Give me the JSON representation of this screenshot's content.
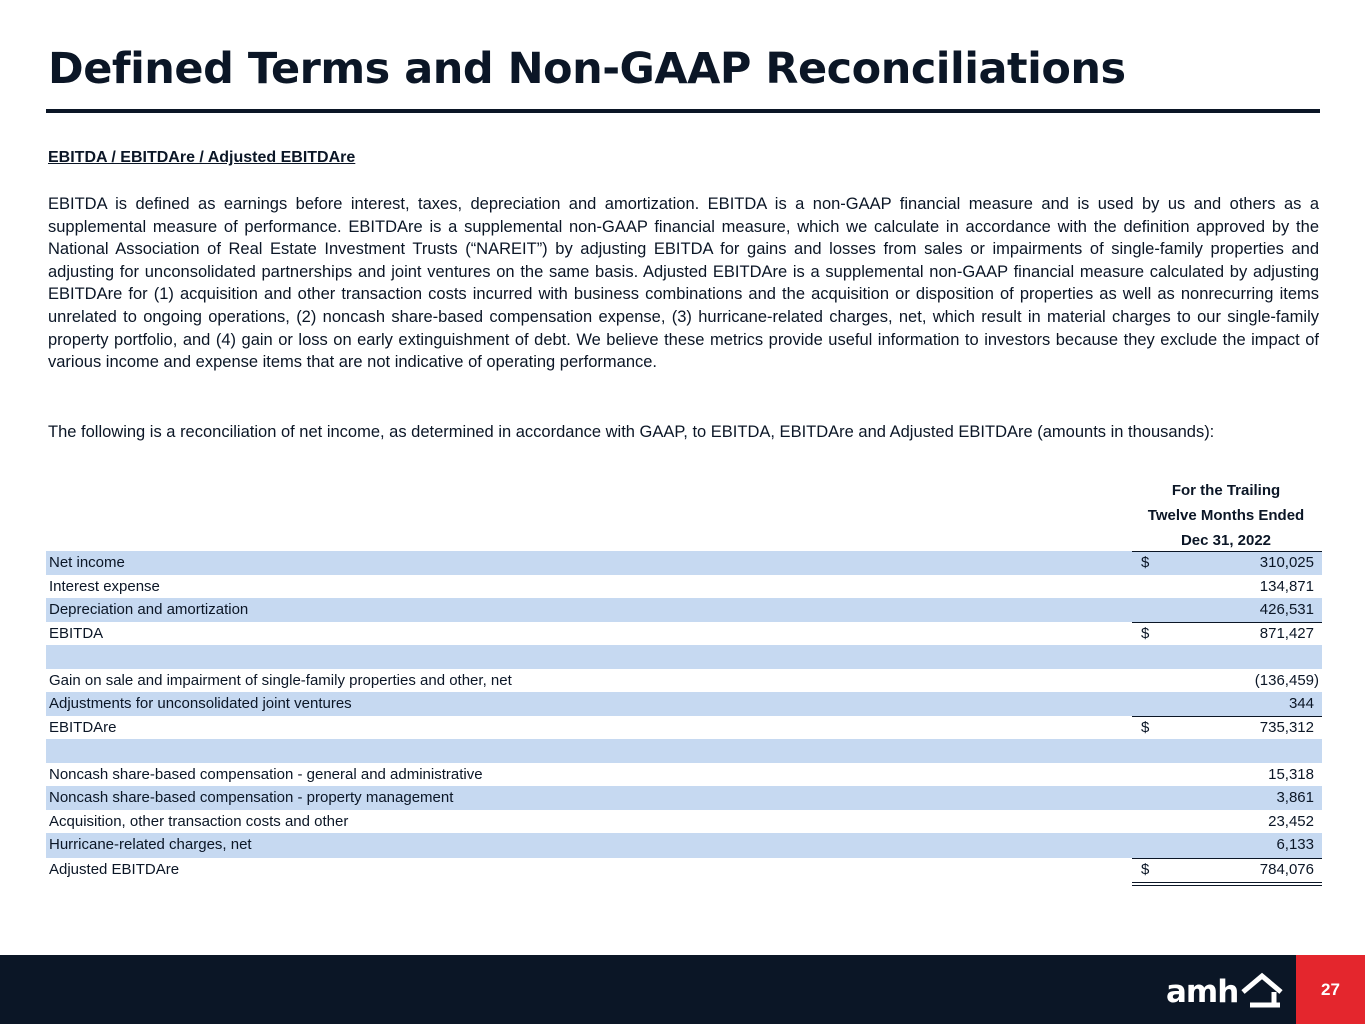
{
  "title": "Defined Terms and Non-GAAP Reconciliations",
  "section_heading": "EBITDA / EBITDAre / Adjusted EBITDAre",
  "paragraph_1": "EBITDA is defined as earnings before interest, taxes, depreciation and amortization. EBITDA is a non-GAAP financial measure and is used by us and others as a supplemental measure of performance. EBITDAre is a supplemental non-GAAP financial measure, which we calculate in accordance with the definition approved by the National Association of Real Estate Investment Trusts (“NAREIT”) by adjusting EBITDA for gains and losses from sales or impairments of single-family properties and adjusting for unconsolidated partnerships and joint ventures on the same basis. Adjusted EBITDAre is a supplemental non-GAAP financial measure calculated by adjusting EBITDAre for (1) acquisition and other transaction costs incurred with business combinations and the acquisition or disposition of properties as well as nonrecurring items unrelated to ongoing operations, (2) noncash share-based compensation expense, (3) hurricane-related charges, net, which result in material charges to our single-family property portfolio, and (4) gain or loss on early extinguishment of debt. We believe these metrics provide useful information to investors because they exclude the impact of various income and expense items that are not indicative of operating performance.",
  "paragraph_2": "The following is a reconciliation of net income, as determined in accordance with GAAP, to EBITDA, EBITDAre and Adjusted EBITDAre (amounts in thousands):",
  "column_header": {
    "line1": "For the Trailing",
    "line2": "Twelve Months Ended",
    "line3": "Dec 31, 2022"
  },
  "rows": [
    {
      "label": "Net income",
      "currency": "$",
      "amount": "310,025"
    },
    {
      "label": "Interest expense",
      "currency": "",
      "amount": "134,871"
    },
    {
      "label": "Depreciation and amortization",
      "currency": "",
      "amount": "426,531"
    },
    {
      "label": "EBITDA",
      "currency": "$",
      "amount": "871,427"
    },
    {
      "label": "",
      "currency": "",
      "amount": ""
    },
    {
      "label": "Gain on sale and impairment of single-family properties and other, net",
      "currency": "",
      "amount": "(136,459)"
    },
    {
      "label": "Adjustments for unconsolidated joint ventures",
      "currency": "",
      "amount": "344"
    },
    {
      "label": "EBITDAre",
      "currency": "$",
      "amount": "735,312"
    },
    {
      "label": "",
      "currency": "",
      "amount": ""
    },
    {
      "label": "Noncash share-based compensation - general and administrative",
      "currency": "",
      "amount": "15,318"
    },
    {
      "label": "Noncash share-based compensation - property management",
      "currency": "",
      "amount": "3,861"
    },
    {
      "label": "Acquisition, other transaction costs and other",
      "currency": "",
      "amount": "23,452"
    },
    {
      "label": "Hurricane-related charges, net",
      "currency": "",
      "amount": "6,133"
    },
    {
      "label": "Adjusted EBITDAre",
      "currency": "$",
      "amount": "784,076"
    }
  ],
  "footer": {
    "logo_text": "amh",
    "page_number": "27"
  },
  "colors": {
    "navy": "#0b1626",
    "row_shade": "#c6d9f1",
    "accent_red": "#e4262d"
  }
}
